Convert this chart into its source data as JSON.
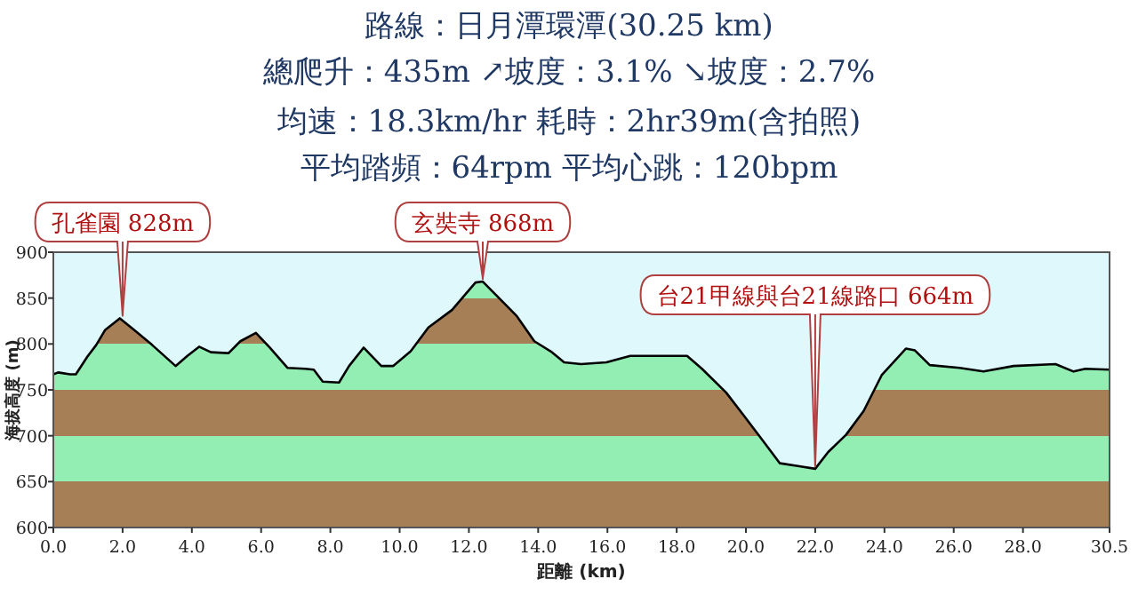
{
  "chart_data": {
    "type": "area",
    "title": "路線：日月潭環潭(30.25 km)",
    "subtitle": "總爬升：435m ↗坡度：3.1% ↘坡度：2.7%",
    "annotations": [
      "均速：18.3km/hr  耗時：2hr39m(含拍照)",
      "平均踏頻：64rpm  平均心跳：120bpm",
      {
        "text": "孔雀園 828m",
        "x": 2.0,
        "y": 828
      },
      {
        "text": "玄奘寺 868m",
        "x": 12.4,
        "y": 868
      },
      {
        "text": "台21甲線與台21線路口 664m",
        "x": 22.0,
        "y": 664
      }
    ],
    "xlabel": "距離 (km)",
    "ylabel": "海拔高度 (m)",
    "x": [
      0,
      0.14,
      0.48,
      0.65,
      0.98,
      1.24,
      1.49,
      1.92,
      2.34,
      2.85,
      3.53,
      3.87,
      4.21,
      4.55,
      5.06,
      5.4,
      5.85,
      6.25,
      6.76,
      7.27,
      7.52,
      7.78,
      8.25,
      8.54,
      8.96,
      9.47,
      9.81,
      10.32,
      10.83,
      11.51,
      12.19,
      12.4,
      12.87,
      13.37,
      13.89,
      14.4,
      14.75,
      15.24,
      15.97,
      16.66,
      17.7,
      18.3,
      18.73,
      19.43,
      19.94,
      20.46,
      20.98,
      21.5,
      22.0,
      22.37,
      22.89,
      23.4,
      23.92,
      24.62,
      24.88,
      25.31,
      26.17,
      26.86,
      27.73,
      28.94,
      29.46,
      29.8,
      30.5
    ],
    "series": [
      {
        "color": "#000000",
        "values": [
          767,
          769,
          767,
          767,
          786,
          799,
          815,
          828,
          815,
          799,
          776,
          787,
          797,
          791,
          790,
          803,
          812,
          796,
          774,
          773,
          772,
          759,
          758,
          776,
          796,
          776,
          776,
          792,
          818,
          837,
          867,
          868,
          850,
          831,
          803,
          791,
          780,
          778,
          780,
          787,
          787,
          787,
          773,
          747,
          722,
          696,
          670,
          667,
          664,
          682,
          701,
          727,
          766,
          795,
          793,
          777,
          774,
          770,
          776,
          778,
          770,
          773,
          772
        ]
      }
    ],
    "xlim": [
      0,
      30.5
    ],
    "xticks": [
      {
        "value": 0,
        "label": "0.0"
      },
      {
        "value": 2,
        "label": "2.0"
      },
      {
        "value": 4,
        "label": "4.0"
      },
      {
        "value": 6,
        "label": "6.0"
      },
      {
        "value": 8,
        "label": "8.0"
      },
      {
        "value": 10,
        "label": "10.0"
      },
      {
        "value": 12,
        "label": "12.0"
      },
      {
        "value": 14,
        "label": "14.0"
      },
      {
        "value": 16,
        "label": "16.0"
      },
      {
        "value": 18,
        "label": "18.0"
      },
      {
        "value": 20,
        "label": "20.0"
      },
      {
        "value": 22,
        "label": "22.0"
      },
      {
        "value": 24,
        "label": "24.0"
      },
      {
        "value": 26,
        "label": "26.0"
      },
      {
        "value": 28,
        "label": "28.0"
      },
      {
        "value": 30.5,
        "label": "30.5"
      }
    ],
    "ylim": [
      600,
      900
    ],
    "yticks": [
      600,
      650,
      700,
      750,
      800,
      850,
      900
    ],
    "grid": false,
    "marker": "none",
    "line_style": "solid"
  }
}
